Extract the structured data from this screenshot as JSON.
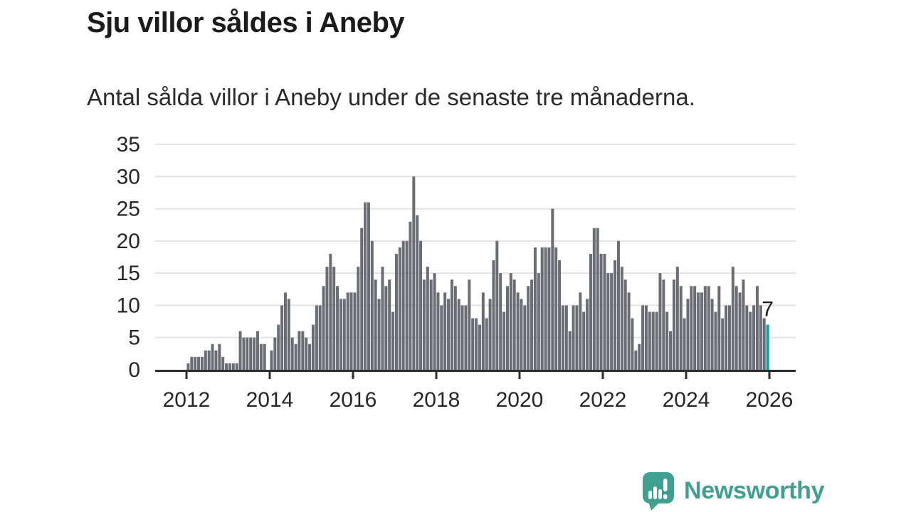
{
  "chart_data": {
    "type": "bar",
    "title": "Sju villor såldes i Aneby",
    "subtitle": "Antal sålda villor i Aneby under de senaste tre månaderna.",
    "x_unit": "month",
    "x_start": "2012-01",
    "x_end": "2025-12",
    "xlabel": "",
    "ylabel": "",
    "ylim": [
      0,
      35
    ],
    "yticks": [
      0,
      5,
      10,
      15,
      20,
      25,
      30,
      35
    ],
    "xticks": [
      "2012",
      "2014",
      "2016",
      "2018",
      "2020",
      "2022",
      "2024",
      "2026"
    ],
    "grid": "horizontal",
    "legend": "none",
    "bar_color": "#6a6d74",
    "grid_color": "#e3e3e3",
    "axis_color": "#2d2d2d",
    "label_color": "#262626",
    "annotation_color": "#1a1a1a",
    "series_by_year": {
      "2012": [
        1,
        2,
        2,
        2,
        2,
        3,
        3,
        4,
        3,
        4,
        2,
        1
      ],
      "2013": [
        1,
        1,
        1,
        6,
        5,
        5,
        5,
        5,
        6,
        4,
        4,
        0
      ],
      "2014": [
        3,
        5,
        7,
        10,
        12,
        11,
        5,
        4,
        6,
        6,
        5,
        4
      ],
      "2015": [
        7,
        10,
        10,
        13,
        16,
        18,
        16,
        13,
        11,
        11,
        12,
        12
      ],
      "2016": [
        12,
        16,
        22,
        26,
        26,
        20,
        14,
        11,
        16,
        13,
        14,
        9
      ],
      "2017": [
        18,
        19,
        20,
        20,
        23,
        30,
        24,
        20,
        14,
        16,
        14,
        15
      ],
      "2018": [
        12,
        10,
        12,
        11,
        14,
        13,
        11,
        10,
        10,
        14,
        8,
        8
      ],
      "2019": [
        7,
        12,
        8,
        11,
        17,
        20,
        15,
        9,
        13,
        15,
        14,
        12
      ],
      "2020": [
        11,
        10,
        13,
        14,
        19,
        15,
        19,
        19,
        19,
        25,
        19,
        17
      ],
      "2021": [
        10,
        10,
        6,
        10,
        10,
        12,
        9,
        11,
        18,
        22,
        22,
        18
      ],
      "2022": [
        18,
        15,
        15,
        17,
        20,
        16,
        14,
        12,
        8,
        3,
        4,
        10
      ],
      "2023": [
        10,
        9,
        9,
        9,
        15,
        14,
        9,
        6,
        14,
        16,
        13,
        8
      ],
      "2024": [
        11,
        13,
        13,
        12,
        12,
        13,
        13,
        11,
        9,
        13,
        8,
        10
      ],
      "2025": [
        10,
        16,
        13,
        12,
        14,
        10,
        9,
        10,
        13,
        10,
        8,
        7
      ]
    },
    "highlight": {
      "month": "2025-12",
      "value": 7,
      "label": "7",
      "color": "#00a2a7"
    }
  },
  "brand": {
    "name": "Newsworthy",
    "color": "#3f9f90",
    "icon": "newsworthy-chart-bubble-icon"
  }
}
